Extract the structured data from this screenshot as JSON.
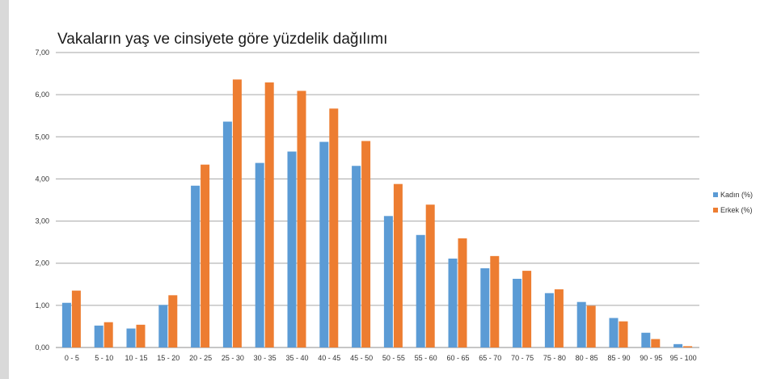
{
  "chart_data": {
    "type": "bar",
    "title": "Vakaların yaş ve cinsiyete göre yüzdelik dağılımı",
    "xlabel": "",
    "ylabel": "",
    "ylim": [
      0,
      7
    ],
    "yticks": [
      "0,00",
      "1,00",
      "2,00",
      "3,00",
      "4,00",
      "5,00",
      "6,00",
      "7,00"
    ],
    "grid": true,
    "legend_position": "right",
    "categories": [
      "0 - 5",
      "5 - 10",
      "10 - 15",
      "15 - 20",
      "20 - 25",
      "25 - 30",
      "30 - 35",
      "35 - 40",
      "40 - 45",
      "45 - 50",
      "50 - 55",
      "55 - 60",
      "60 - 65",
      "65 - 70",
      "70 - 75",
      "75 - 80",
      "80 - 85",
      "85 - 90",
      "90 - 95",
      "95 - 100"
    ],
    "series": [
      {
        "name": "Kadın (%)",
        "color": "#5b9bd5",
        "values": [
          1.06,
          0.52,
          0.45,
          1.01,
          3.84,
          5.36,
          4.38,
          4.65,
          4.88,
          4.31,
          3.12,
          2.67,
          2.11,
          1.88,
          1.63,
          1.29,
          1.08,
          0.7,
          0.35,
          0.08
        ]
      },
      {
        "name": "Erkek (%)",
        "color": "#ed7d31",
        "values": [
          1.35,
          0.6,
          0.54,
          1.24,
          4.34,
          6.36,
          6.29,
          6.09,
          5.67,
          4.9,
          3.88,
          3.39,
          2.59,
          2.17,
          1.82,
          1.38,
          0.99,
          0.62,
          0.2,
          0.03
        ]
      }
    ]
  }
}
